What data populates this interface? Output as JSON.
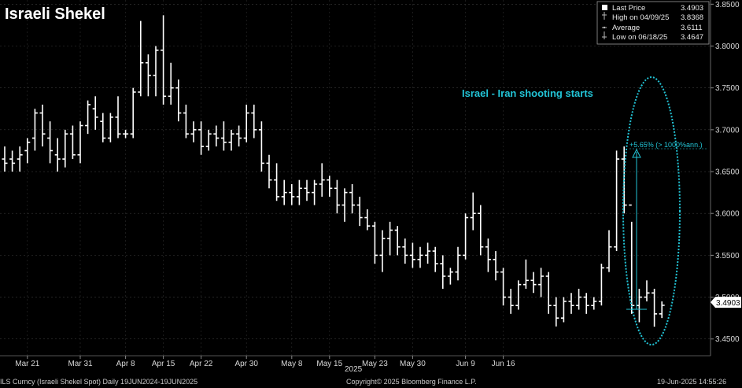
{
  "chart_data": {
    "type": "ohlc",
    "title": "Israeli Shekel",
    "annotation": "Israel - Iran shooting starts",
    "move_annotation": "+5.65% (> 1000%ann.)",
    "ylim": [
      3.43,
      3.855
    ],
    "y_ticks": [
      "3.4500",
      "3.5000",
      "3.5500",
      "3.6000",
      "3.6500",
      "3.7000",
      "3.7500",
      "3.8000",
      "3.8500"
    ],
    "y_tick_values": [
      3.45,
      3.5,
      3.55,
      3.6,
      3.65,
      3.7,
      3.75,
      3.8,
      3.85
    ],
    "x_ticks": [
      "Mar 21",
      "Mar 31",
      "Apr 8",
      "Apr 15",
      "Apr 22",
      "Apr 30",
      "May 8",
      "May 15",
      "May 23",
      "May 30",
      "Jun 9",
      "Jun 16"
    ],
    "x_tick_bar_index": [
      3,
      10,
      16,
      21,
      26,
      32,
      38,
      43,
      49,
      54,
      61,
      66
    ],
    "year_label": "2025",
    "legend": [
      {
        "label": "Last Price",
        "value": "3.4903"
      },
      {
        "label": "High on 04/09/25",
        "value": "3.8368"
      },
      {
        "label": "Average",
        "value": "3.6111"
      },
      {
        "label": "Low on 06/18/25",
        "value": "3.4647"
      }
    ],
    "last_value": "3.4903",
    "colors": {
      "bars": "#ffffff",
      "annotation": "#22c4d6",
      "background": "#000000",
      "last_tag": "#ffffff"
    },
    "bars": [
      [
        3.665,
        3.68,
        3.65,
        3.66
      ],
      [
        3.665,
        3.675,
        3.65,
        3.66
      ],
      [
        3.665,
        3.68,
        3.65,
        3.67
      ],
      [
        3.675,
        3.69,
        3.66,
        3.685
      ],
      [
        3.69,
        3.725,
        3.675,
        3.72
      ],
      [
        3.72,
        3.73,
        3.68,
        3.695
      ],
      [
        3.69,
        3.71,
        3.66,
        3.675
      ],
      [
        3.67,
        3.69,
        3.65,
        3.665
      ],
      [
        3.665,
        3.7,
        3.655,
        3.695
      ],
      [
        3.695,
        3.705,
        3.665,
        3.67
      ],
      [
        3.67,
        3.71,
        3.66,
        3.705
      ],
      [
        3.705,
        3.735,
        3.695,
        3.73
      ],
      [
        3.725,
        3.74,
        3.7,
        3.715
      ],
      [
        3.71,
        3.72,
        3.685,
        3.69
      ],
      [
        3.69,
        3.72,
        3.685,
        3.715
      ],
      [
        3.715,
        3.74,
        3.69,
        3.695
      ],
      [
        3.695,
        3.7,
        3.69,
        3.695
      ],
      [
        3.695,
        3.75,
        3.69,
        3.745
      ],
      [
        3.745,
        3.83,
        3.74,
        3.78
      ],
      [
        3.78,
        3.79,
        3.74,
        3.765
      ],
      [
        3.765,
        3.8,
        3.74,
        3.795
      ],
      [
        3.795,
        3.8368,
        3.73,
        3.74
      ],
      [
        3.74,
        3.78,
        3.73,
        3.75
      ],
      [
        3.75,
        3.76,
        3.71,
        3.72
      ],
      [
        3.72,
        3.73,
        3.69,
        3.695
      ],
      [
        3.695,
        3.71,
        3.685,
        3.7
      ],
      [
        3.7,
        3.71,
        3.67,
        3.68
      ],
      [
        3.68,
        3.7,
        3.675,
        3.695
      ],
      [
        3.695,
        3.705,
        3.68,
        3.69
      ],
      [
        3.69,
        3.71,
        3.675,
        3.685
      ],
      [
        3.685,
        3.7,
        3.675,
        3.695
      ],
      [
        3.695,
        3.705,
        3.68,
        3.69
      ],
      [
        3.69,
        3.73,
        3.685,
        3.72
      ],
      [
        3.72,
        3.73,
        3.69,
        3.7
      ],
      [
        3.7,
        3.71,
        3.65,
        3.66
      ],
      [
        3.66,
        3.67,
        3.63,
        3.64
      ],
      [
        3.64,
        3.66,
        3.615,
        3.62
      ],
      [
        3.62,
        3.64,
        3.61,
        3.625
      ],
      [
        3.625,
        3.635,
        3.61,
        3.62
      ],
      [
        3.62,
        3.64,
        3.61,
        3.63
      ],
      [
        3.63,
        3.64,
        3.615,
        3.625
      ],
      [
        3.625,
        3.64,
        3.61,
        3.635
      ],
      [
        3.635,
        3.66,
        3.62,
        3.64
      ],
      [
        3.64,
        3.645,
        3.62,
        3.63
      ],
      [
        3.63,
        3.64,
        3.6,
        3.61
      ],
      [
        3.61,
        3.63,
        3.59,
        3.625
      ],
      [
        3.625,
        3.635,
        3.6,
        3.61
      ],
      [
        3.61,
        3.62,
        3.585,
        3.595
      ],
      [
        3.595,
        3.605,
        3.58,
        3.585
      ],
      [
        3.585,
        3.59,
        3.54,
        3.55
      ],
      [
        3.55,
        3.58,
        3.53,
        3.57
      ],
      [
        3.57,
        3.59,
        3.55,
        3.58
      ],
      [
        3.58,
        3.585,
        3.55,
        3.56
      ],
      [
        3.56,
        3.57,
        3.54,
        3.55
      ],
      [
        3.55,
        3.565,
        3.535,
        3.545
      ],
      [
        3.545,
        3.56,
        3.535,
        3.55
      ],
      [
        3.55,
        3.565,
        3.54,
        3.555
      ],
      [
        3.555,
        3.56,
        3.53,
        3.54
      ],
      [
        3.54,
        3.55,
        3.51,
        3.525
      ],
      [
        3.525,
        3.535,
        3.515,
        3.53
      ],
      [
        3.53,
        3.56,
        3.52,
        3.55
      ],
      [
        3.55,
        3.6,
        3.545,
        3.595
      ],
      [
        3.595,
        3.625,
        3.58,
        3.6
      ],
      [
        3.6,
        3.61,
        3.55,
        3.56
      ],
      [
        3.56,
        3.57,
        3.53,
        3.545
      ],
      [
        3.545,
        3.555,
        3.52,
        3.53
      ],
      [
        3.53,
        3.535,
        3.49,
        3.5
      ],
      [
        3.5,
        3.51,
        3.48,
        3.49
      ],
      [
        3.49,
        3.52,
        3.485,
        3.515
      ],
      [
        3.515,
        3.545,
        3.51,
        3.52
      ],
      [
        3.52,
        3.53,
        3.505,
        3.515
      ],
      [
        3.515,
        3.535,
        3.5,
        3.525
      ],
      [
        3.525,
        3.53,
        3.48,
        3.49
      ],
      [
        3.49,
        3.5,
        3.465,
        3.475
      ],
      [
        3.475,
        3.5,
        3.47,
        3.495
      ],
      [
        3.495,
        3.505,
        3.48,
        3.49
      ],
      [
        3.49,
        3.51,
        3.485,
        3.5
      ],
      [
        3.5,
        3.505,
        3.48,
        3.49
      ],
      [
        3.49,
        3.5,
        3.485,
        3.495
      ],
      [
        3.495,
        3.54,
        3.49,
        3.535
      ],
      [
        3.535,
        3.58,
        3.53,
        3.56
      ],
      [
        3.56,
        3.675,
        3.555,
        3.665
      ],
      [
        3.665,
        3.68,
        3.6,
        3.61
      ],
      [
        3.61,
        3.59,
        3.48,
        3.49
      ],
      [
        3.49,
        3.51,
        3.47,
        3.5
      ],
      [
        3.5,
        3.52,
        3.495,
        3.505
      ],
      [
        3.505,
        3.51,
        3.4647,
        3.48
      ],
      [
        3.48,
        3.495,
        3.475,
        3.4903
      ]
    ]
  },
  "footer": {
    "left": "ILS Curncy (Israeli Shekel Spot)  Daily 19JUN2024-19JUN2025",
    "center": "Copyright© 2025 Bloomberg Finance L.P.",
    "right": "19-Jun-2025 14:55:26"
  }
}
